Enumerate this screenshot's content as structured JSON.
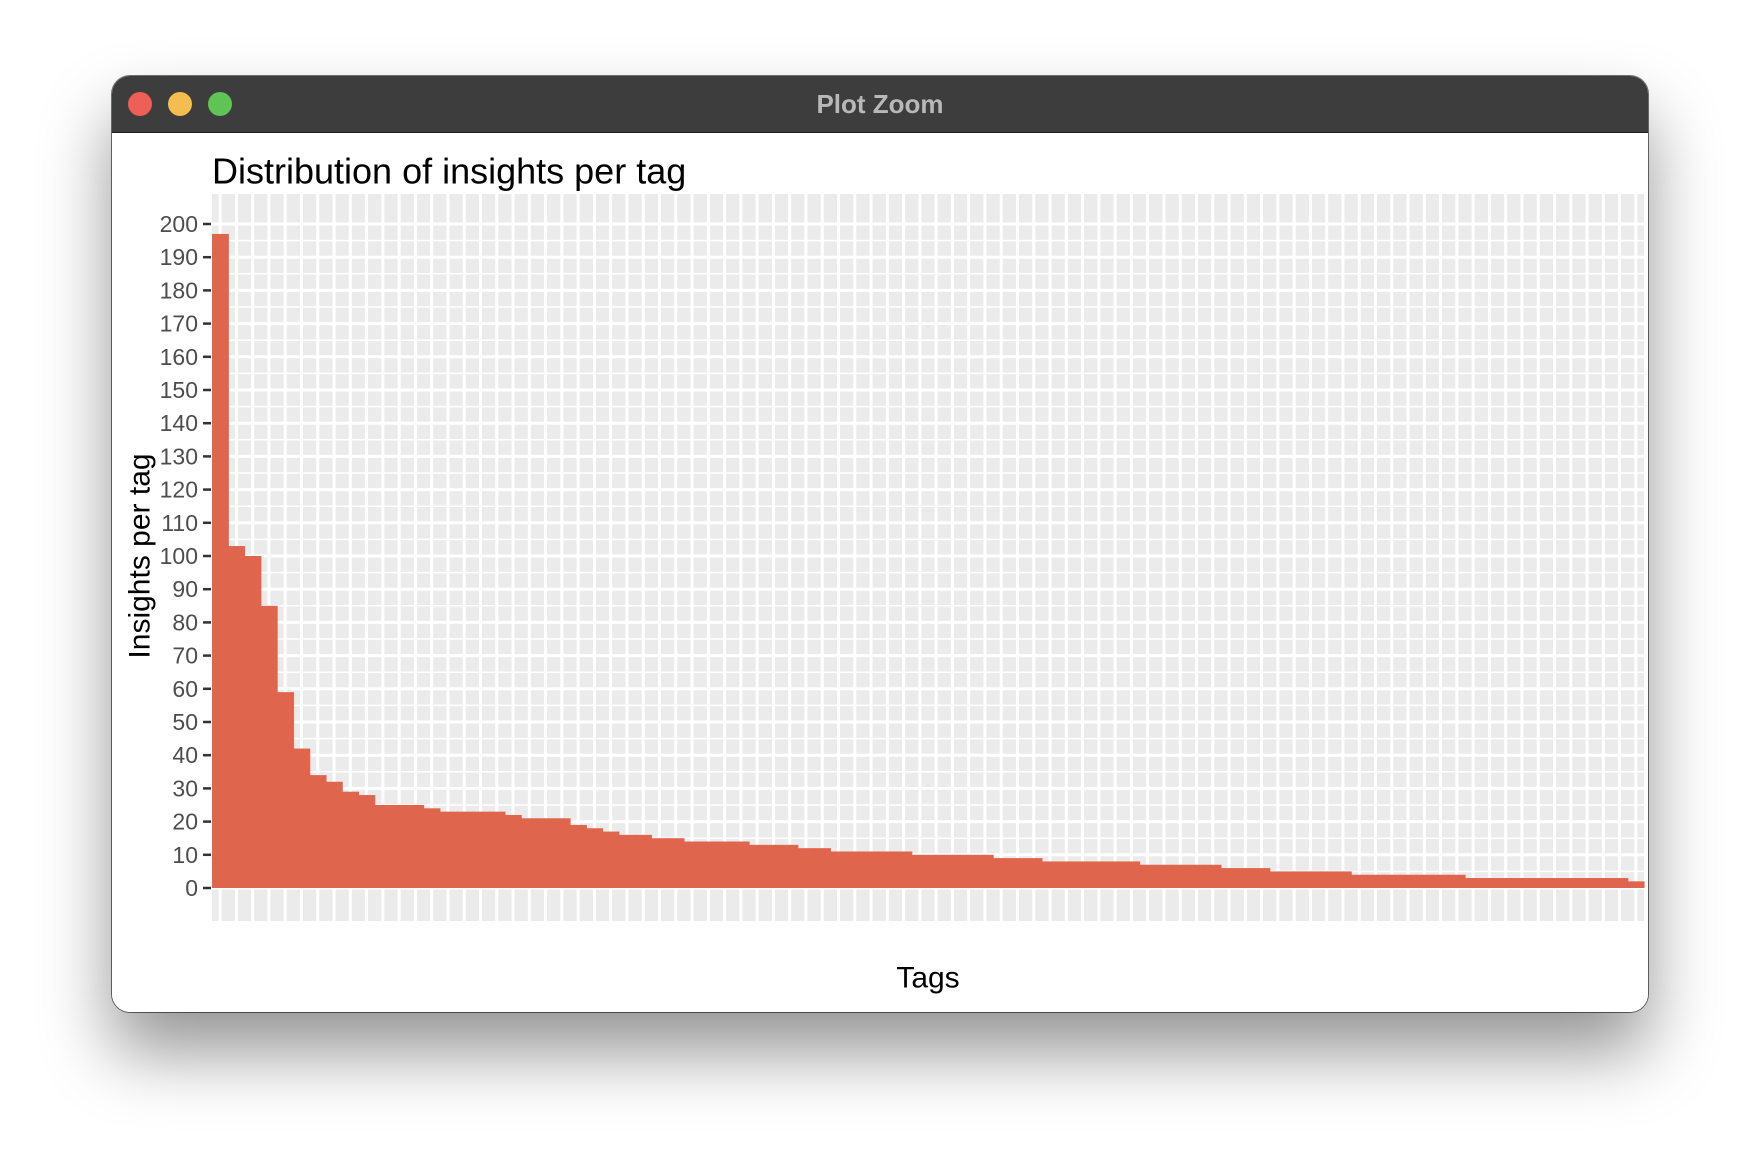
{
  "window": {
    "title": "Plot Zoom"
  },
  "colors": {
    "bar": "#e0654d",
    "panel": "#ebebeb",
    "grid": "#ffffff",
    "titlebar": "#3d3d3d"
  },
  "chart_data": {
    "type": "bar",
    "title": "Distribution of insights per tag",
    "xlabel": "Tags",
    "ylabel": "Insights per tag",
    "ylim": [
      0,
      200
    ],
    "yticks": [
      0,
      10,
      20,
      30,
      40,
      50,
      60,
      70,
      80,
      90,
      100,
      110,
      120,
      130,
      140,
      150,
      160,
      170,
      180,
      190,
      200
    ],
    "grid": true,
    "legend": "none",
    "values": [
      197,
      103,
      100,
      85,
      59,
      42,
      34,
      32,
      29,
      28,
      25,
      25,
      25,
      24,
      23,
      23,
      23,
      23,
      22,
      21,
      21,
      21,
      19,
      18,
      17,
      16,
      16,
      15,
      15,
      14,
      14,
      14,
      14,
      13,
      13,
      13,
      12,
      12,
      11,
      11,
      11,
      11,
      11,
      10,
      10,
      10,
      10,
      10,
      9,
      9,
      9,
      8,
      8,
      8,
      8,
      8,
      8,
      7,
      7,
      7,
      7,
      7,
      6,
      6,
      6,
      5,
      5,
      5,
      5,
      5,
      4,
      4,
      4,
      4,
      4,
      4,
      4,
      3,
      3,
      3,
      3,
      3,
      3,
      3,
      3,
      3,
      3,
      2
    ]
  }
}
